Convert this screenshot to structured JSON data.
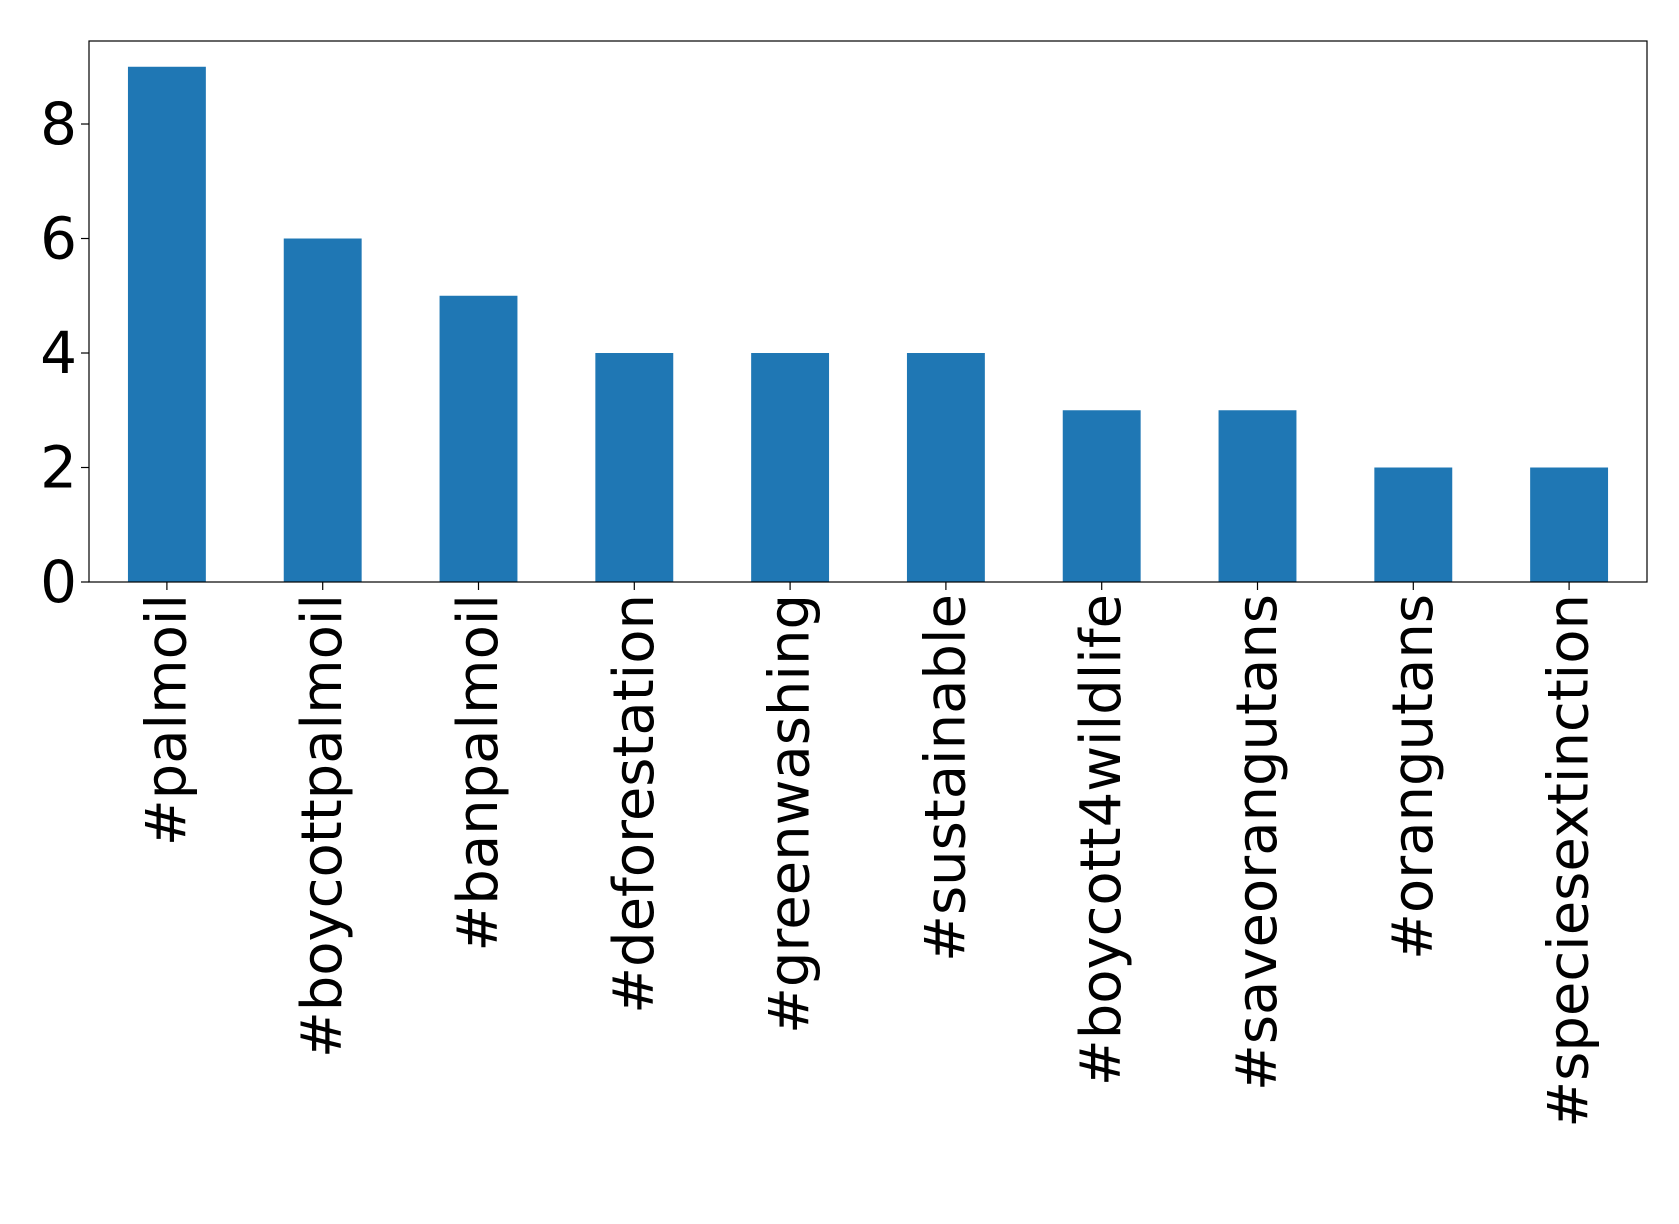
{
  "chart_data": {
    "type": "bar",
    "categories": [
      "#palmoil",
      "#boycottpalmoil",
      "#banpalmoil",
      "#deforestation",
      "#greenwashing",
      "#sustainable",
      "#boycott4wildlife",
      "#saveorangutans",
      "#orangutans",
      "#speciesextinction"
    ],
    "values": [
      9,
      6,
      5,
      4,
      4,
      4,
      3,
      3,
      2,
      2
    ],
    "color": "#1f77b4",
    "ylim": [
      0,
      9.45
    ],
    "yticks": [
      0,
      2,
      4,
      6,
      8
    ],
    "grid": false
  }
}
